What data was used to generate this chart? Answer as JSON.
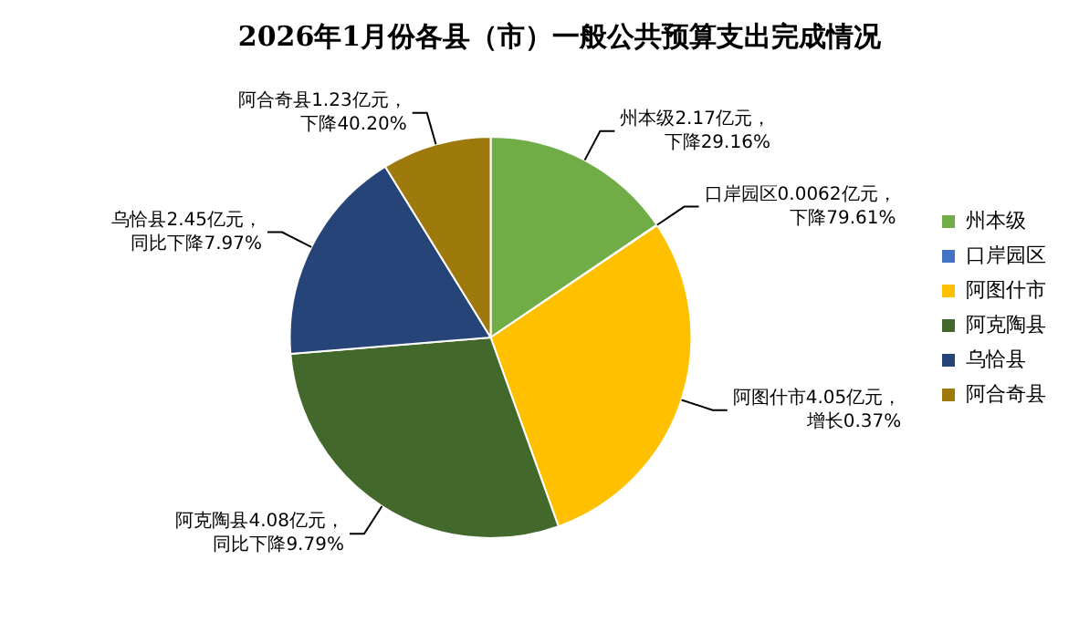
{
  "chart_data": {
    "type": "pie",
    "title": "2026年1月份各县（市）一般公共预算支出完成情况",
    "categories": [
      "州本级",
      "口岸园区",
      "阿图什市",
      "阿克陶县",
      "乌恰县",
      "阿合奇县"
    ],
    "values": [
      2.17,
      0.0062,
      4.05,
      4.08,
      2.45,
      1.23
    ],
    "colors": [
      "#70ad47",
      "#4472c4",
      "#ffc000",
      "#43682b",
      "#264478",
      "#9e7a0d"
    ],
    "value_labels": [
      "州本级2.17亿元，下降29.16%",
      "口岸园区0.0062亿元，下降79.61%",
      "阿图什市4.05亿元，增长0.37%",
      "阿克陶县4.08亿元，同比下降9.79%",
      "乌恰县2.45亿元，同比下降7.97%",
      "阿合奇县1.23亿元，下降40.20%"
    ],
    "legend": "right"
  }
}
